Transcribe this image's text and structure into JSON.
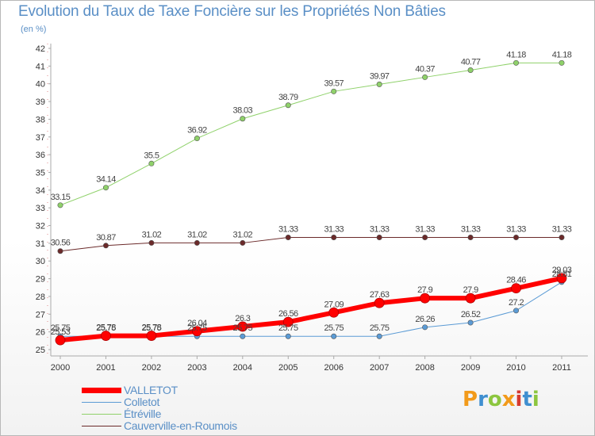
{
  "header": {
    "title": "Evolution du Taux de Taxe Foncière sur les Propriétés Non Bâties",
    "units": "(en %)"
  },
  "logo": {
    "text": "Proxiti",
    "colors": [
      "#f29a1a",
      "#3f8fd0",
      "#8cc63f",
      "#f29a1a",
      "#d63a2f",
      "#3f8fd0",
      "#8cc63f"
    ]
  },
  "chart_data": {
    "type": "line",
    "title": "Evolution du Taux de Taxe Foncière sur les Propriétés Non Bâties",
    "ylabel": "(en %)",
    "xlabel": "",
    "x": [
      "2000",
      "2001",
      "2002",
      "2003",
      "2004",
      "2005",
      "2006",
      "2007",
      "2008",
      "2009",
      "2010",
      "2011"
    ],
    "ylim": [
      25,
      42
    ],
    "yticks": [
      25,
      26,
      27,
      28,
      29,
      30,
      31,
      32,
      33,
      34,
      35,
      36,
      37,
      38,
      39,
      40,
      41,
      42
    ],
    "grid": false,
    "legend": "bottom-left",
    "series": [
      {
        "name": "VALLETOT",
        "color": "#ff0000",
        "width": 6,
        "values": [
          25.53,
          25.78,
          25.78,
          26.04,
          26.3,
          26.56,
          27.09,
          27.63,
          27.9,
          27.9,
          28.46,
          29.03
        ],
        "labels": [
          "25.53",
          "25.78",
          "25.78",
          "26.04",
          "26.3",
          "26.56",
          "27.09",
          "27.63",
          "27.9",
          "27.9",
          "28.46",
          "29.03"
        ]
      },
      {
        "name": "Colletot",
        "color": "#5b9bd5",
        "width": 1,
        "values": [
          25.75,
          25.75,
          25.75,
          25.75,
          25.75,
          25.75,
          25.75,
          25.75,
          26.26,
          26.52,
          27.2,
          28.81
        ],
        "labels": [
          "25.75",
          "25.75",
          "25.75",
          "25.75",
          "25.75",
          "25.75",
          "25.75",
          "25.75",
          "26.26",
          "26.52",
          "27.2",
          "28.81"
        ]
      },
      {
        "name": "Étréville",
        "color": "#8fd16a",
        "width": 1,
        "values": [
          33.15,
          34.14,
          35.5,
          36.92,
          38.03,
          38.79,
          39.57,
          39.97,
          40.37,
          40.77,
          41.18,
          41.18
        ],
        "labels": [
          "33.15",
          "34.14",
          "35.5",
          "36.92",
          "38.03",
          "38.79",
          "39.57",
          "39.97",
          "40.37",
          "40.77",
          "41.18",
          "41.18"
        ]
      },
      {
        "name": "Cauverville-en-Roumois",
        "color": "#6b2a2a",
        "width": 1,
        "values": [
          30.56,
          30.87,
          31.02,
          31.02,
          31.02,
          31.33,
          31.33,
          31.33,
          31.33,
          31.33,
          31.33,
          31.33
        ],
        "labels": [
          "30.56",
          "30.87",
          "31.02",
          "31.02",
          "31.02",
          "31.33",
          "31.33",
          "31.33",
          "31.33",
          "31.33",
          "31.33",
          "31.33"
        ]
      }
    ]
  }
}
